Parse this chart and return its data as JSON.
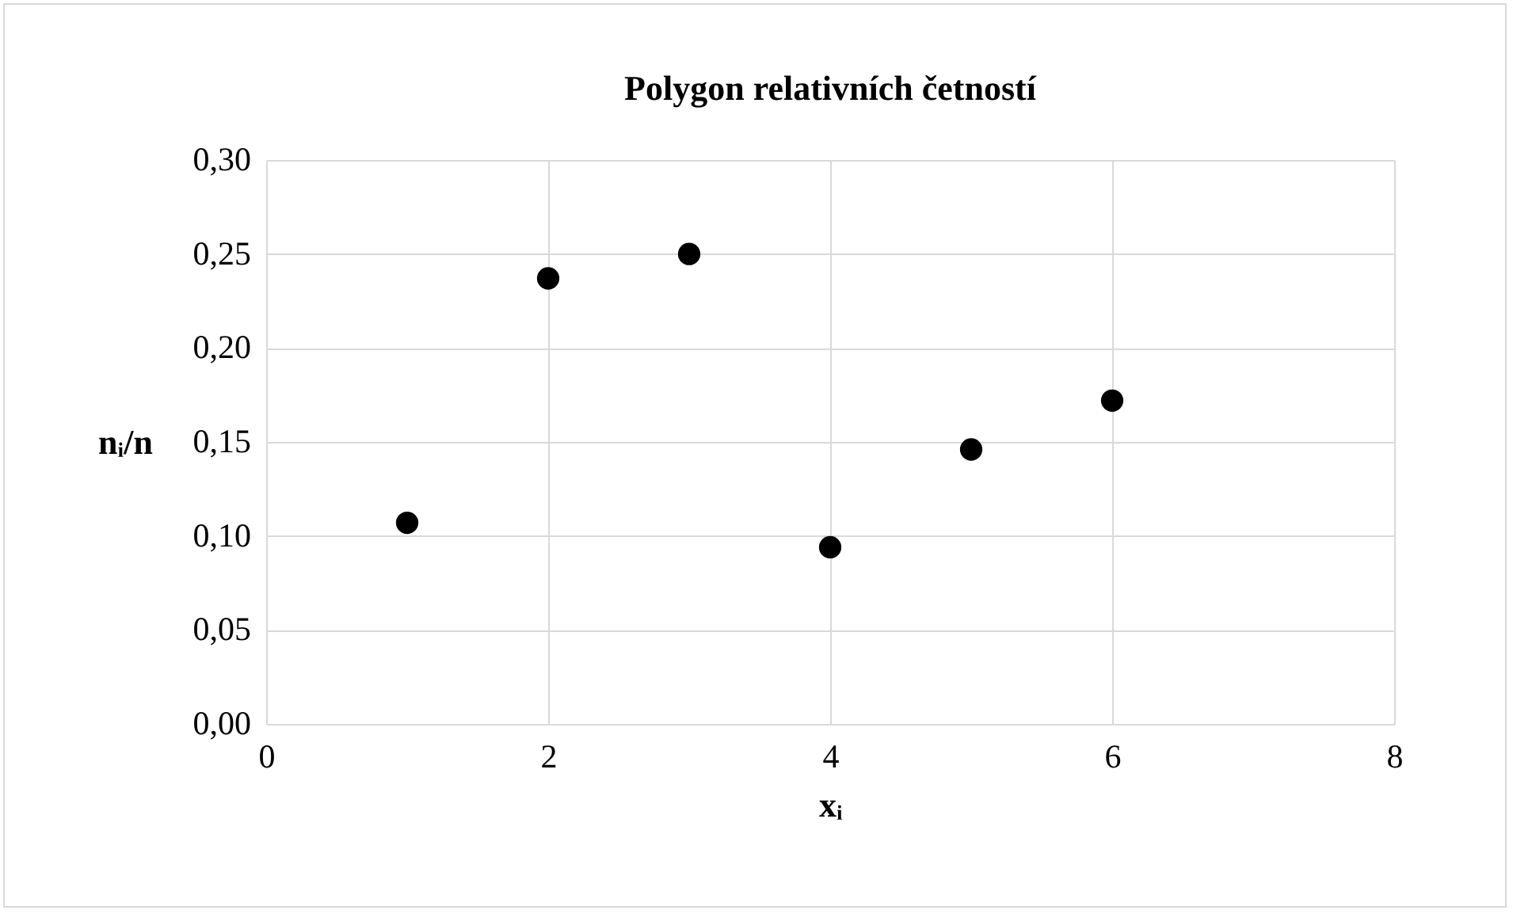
{
  "chart_data": {
    "type": "scatter",
    "title": "Polygon relativních četností",
    "xlabel": "xᵢ",
    "ylabel": "nᵢ/n",
    "x": [
      1,
      2,
      3,
      4,
      5,
      6
    ],
    "series": [
      {
        "color": "#000000",
        "values": [
          0.107,
          0.237,
          0.25,
          0.094,
          0.146,
          0.172
        ]
      }
    ],
    "xlim": [
      0,
      8
    ],
    "xticks": [
      0,
      2,
      4,
      6,
      8
    ],
    "ylim": [
      0,
      0.3
    ],
    "yticks": [
      {
        "value": 0,
        "label": "0,00"
      },
      {
        "value": 0.05,
        "label": "0,05"
      },
      {
        "value": 0.1,
        "label": "0,10"
      },
      {
        "value": 0.15,
        "label": "0,15"
      },
      {
        "value": 0.2,
        "label": "0,20"
      },
      {
        "value": 0.25,
        "label": "0,25"
      },
      {
        "value": 0.3,
        "label": "0,30"
      }
    ],
    "grid": true,
    "marker": "circle",
    "legend": false
  }
}
